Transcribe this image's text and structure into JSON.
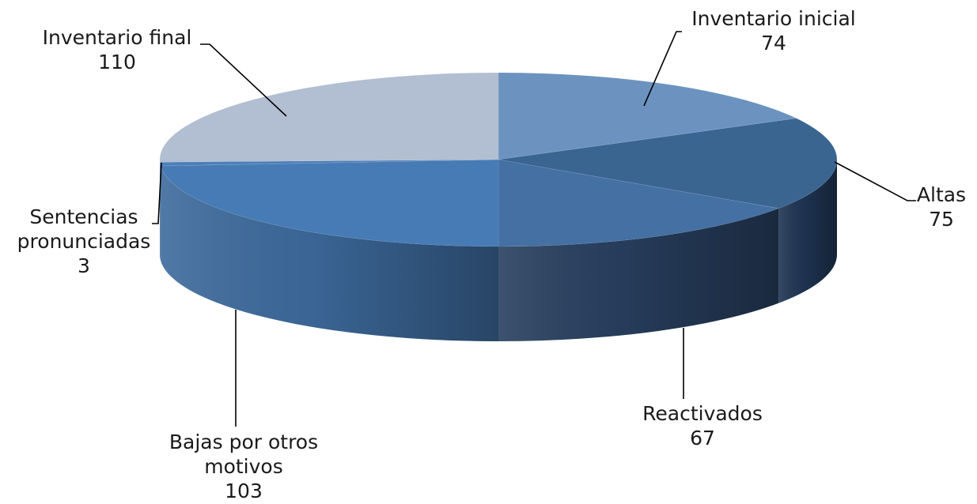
{
  "chart_data": {
    "type": "pie",
    "title": "",
    "categories": [
      "Inventario inicial",
      "Altas",
      "Reactivados",
      "Bajas por otros motivos",
      "Sentencias pronunciadas",
      "Inventario final"
    ],
    "values": [
      74,
      75,
      67,
      103,
      3,
      110
    ],
    "colors": [
      "#6c93c0",
      "#3a6591",
      "#4470a3",
      "#477bb5",
      "#4c7fb9",
      "#b2bed1"
    ],
    "side_colors": [
      "#5f86b3",
      "#1f3553",
      "#283f5f",
      "#3d6a9c",
      "#4a7bb3",
      "#aab6c9"
    ],
    "legend": "none",
    "perspective": "3d-tilted"
  }
}
